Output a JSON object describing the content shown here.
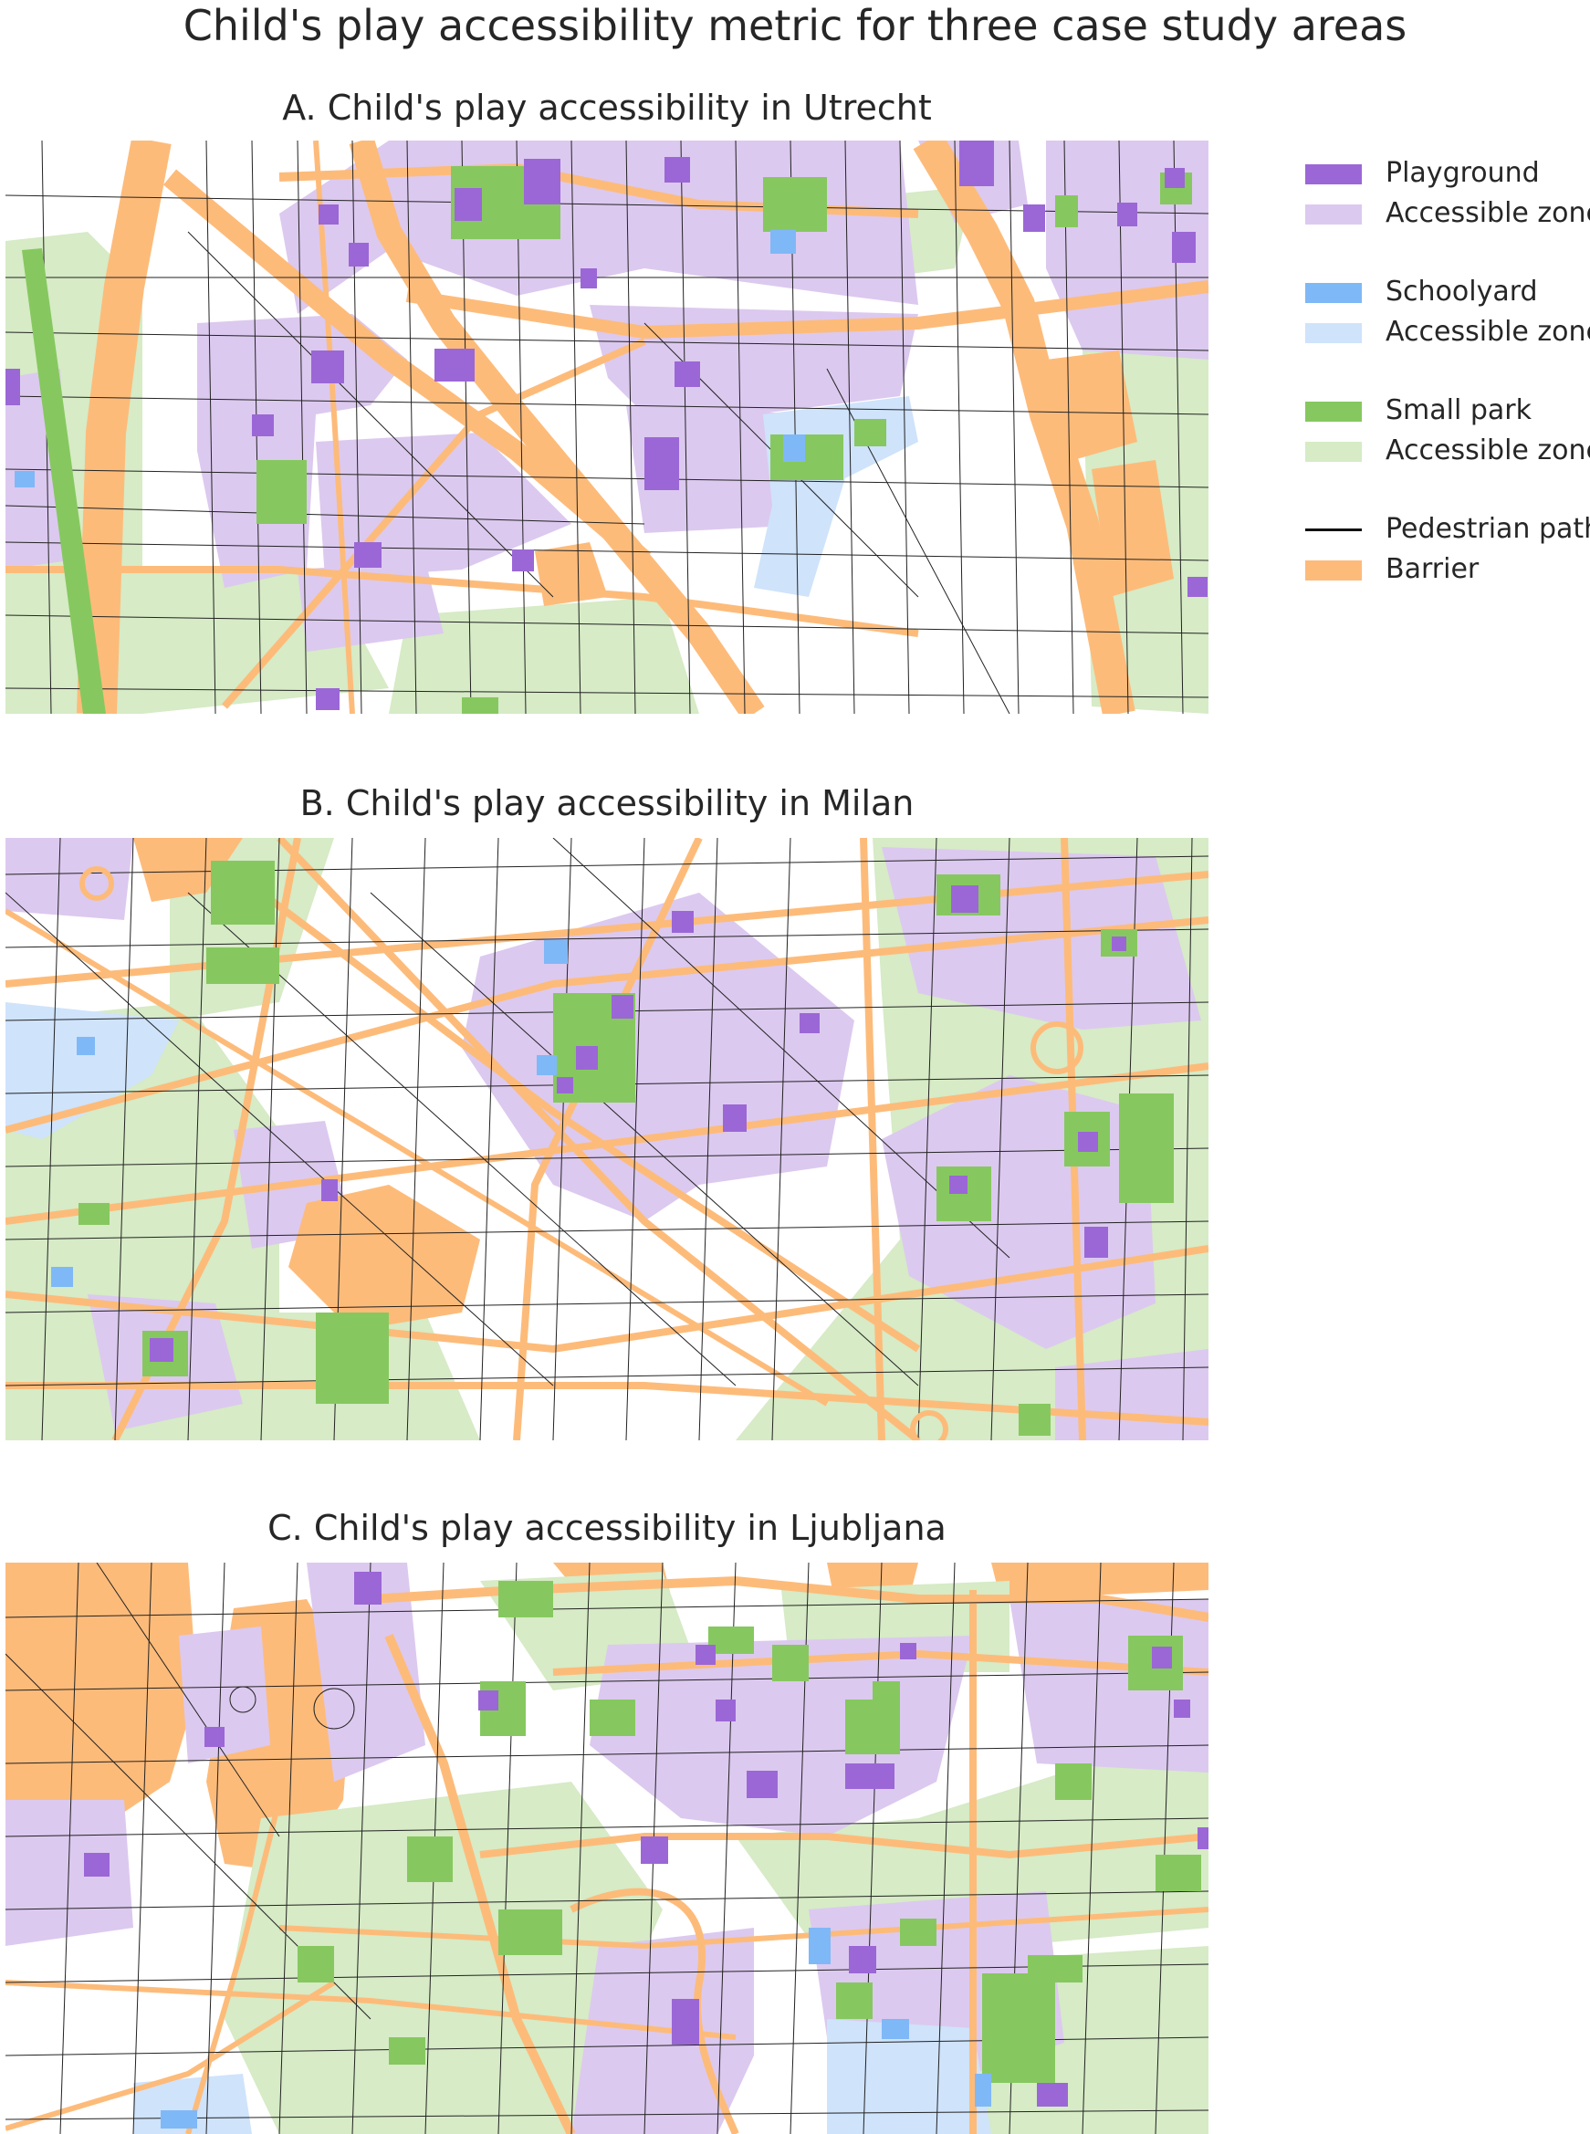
{
  "figure": {
    "title": "Child's play accessibility metric for three case study areas"
  },
  "panels": [
    {
      "title": "A. Child's play accessibility in Utrecht"
    },
    {
      "title": "B. Child's play accessibility in Milan"
    },
    {
      "title": "C. Child's play accessibility in Ljubljana"
    }
  ],
  "legend": {
    "items": [
      {
        "label": "Playground",
        "kind": "swatch",
        "color": "#9b67d6"
      },
      {
        "label": "Accessible zone",
        "kind": "swatch",
        "color": "#dcc9ef"
      },
      {
        "label": "Schoolyard",
        "kind": "swatch",
        "color": "#7fb8f7"
      },
      {
        "label": "Accessible zone",
        "kind": "swatch",
        "color": "#cfe3fb"
      },
      {
        "label": "Small park",
        "kind": "swatch",
        "color": "#86c85f"
      },
      {
        "label": "Accessible zone",
        "kind": "swatch",
        "color": "#d6ebc6"
      },
      {
        "label": "Pedestrian path",
        "kind": "line",
        "color": "#111111"
      },
      {
        "label": "Barrier",
        "kind": "swatch",
        "color": "#fdbb7a"
      }
    ]
  },
  "colors": {
    "playground": "#9b67d6",
    "playground_zone": "#dcc9ef",
    "schoolyard": "#7fb8f7",
    "schoolyard_zone": "#cfe3fb",
    "park": "#86c85f",
    "park_zone": "#d6ebc6",
    "path": "#222222",
    "barrier": "#fdbb7a"
  }
}
